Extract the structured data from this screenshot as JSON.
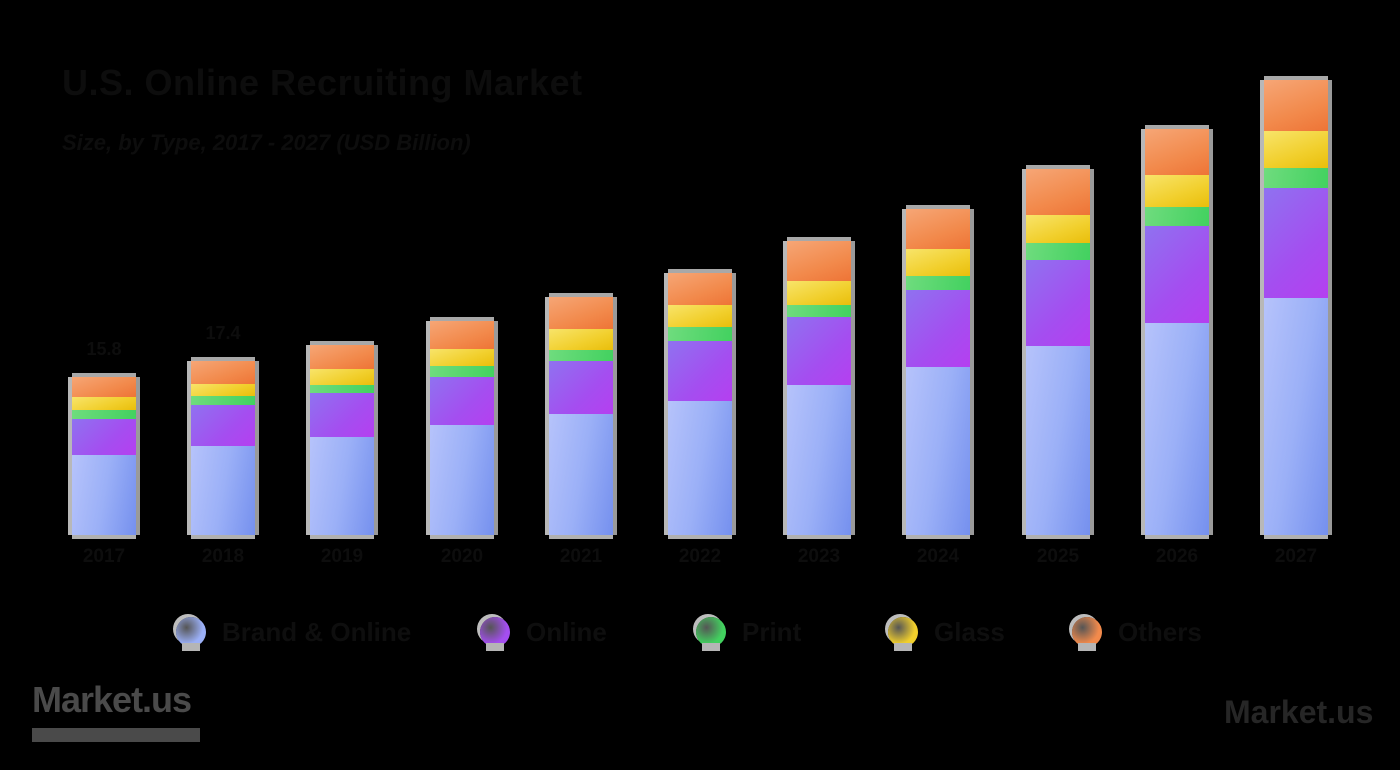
{
  "header": {
    "title": "U.S. Online Recruiting Market",
    "subtitle": "Size, by Type, 2017 - 2027 (USD Billion)"
  },
  "legend": [
    {
      "label": "Brand & Online",
      "color": "#9bb0f7",
      "icon": "circle-marker-icon"
    },
    {
      "label": "Online",
      "color": "#a44ef0",
      "icon": "circle-marker-icon"
    },
    {
      "label": "Print",
      "color": "#42d15f",
      "icon": "circle-marker-icon"
    },
    {
      "label": "Glass",
      "color": "#f1cf2c",
      "icon": "circle-marker-icon"
    },
    {
      "label": "Others",
      "color": "#f28a4c",
      "icon": "circle-marker-icon"
    }
  ],
  "value_labels": [
    "15.8",
    "17.4"
  ],
  "footer": {
    "left_logo": "Market.us",
    "right_logo": "Market.us"
  },
  "chart_data": {
    "type": "bar",
    "stacked": true,
    "title": "U.S. Online Recruiting Market",
    "subtitle": "Size, by Type, 2017 - 2027 (USD Billion)",
    "xlabel": "",
    "ylabel": "USD Billion",
    "categories": [
      "2017",
      "2018",
      "2019",
      "2020",
      "2021",
      "2022",
      "2023",
      "2024",
      "2025",
      "2026",
      "2027"
    ],
    "series": [
      {
        "name": "Brand & Online",
        "color": "#9bb0f7",
        "values": [
          8.0,
          8.9,
          9.8,
          11.0,
          12.1,
          13.4,
          15.0,
          16.8,
          18.9,
          21.2,
          23.7
        ]
      },
      {
        "name": "Online",
        "color": "#a44ef0",
        "values": [
          3.6,
          4.1,
          4.4,
          4.8,
          5.3,
          6.0,
          6.8,
          7.7,
          8.6,
          9.7,
          11.0
        ]
      },
      {
        "name": "Print",
        "color": "#42d15f",
        "values": [
          0.9,
          0.9,
          0.8,
          1.1,
          1.1,
          1.4,
          1.2,
          1.4,
          1.7,
          1.9,
          2.0
        ]
      },
      {
        "name": "Glass",
        "color": "#f1cf2c",
        "values": [
          1.3,
          1.2,
          1.6,
          1.7,
          2.1,
          2.2,
          2.4,
          2.7,
          2.8,
          3.2,
          3.7
        ]
      },
      {
        "name": "Others",
        "color": "#f28a4c",
        "values": [
          2.0,
          2.3,
          2.4,
          2.8,
          3.2,
          3.2,
          4.0,
          4.0,
          4.6,
          4.6,
          5.1
        ]
      }
    ],
    "totals": [
      15.8,
      17.4,
      19.0,
      21.4,
      23.8,
      26.2,
      29.4,
      32.6,
      36.6,
      40.6,
      45.5
    ],
    "annotations": [
      "Total value labels shown above 2017 and 2018 bars"
    ],
    "grid": false,
    "legend_position": "bottom",
    "ylim": [
      0,
      48
    ]
  }
}
